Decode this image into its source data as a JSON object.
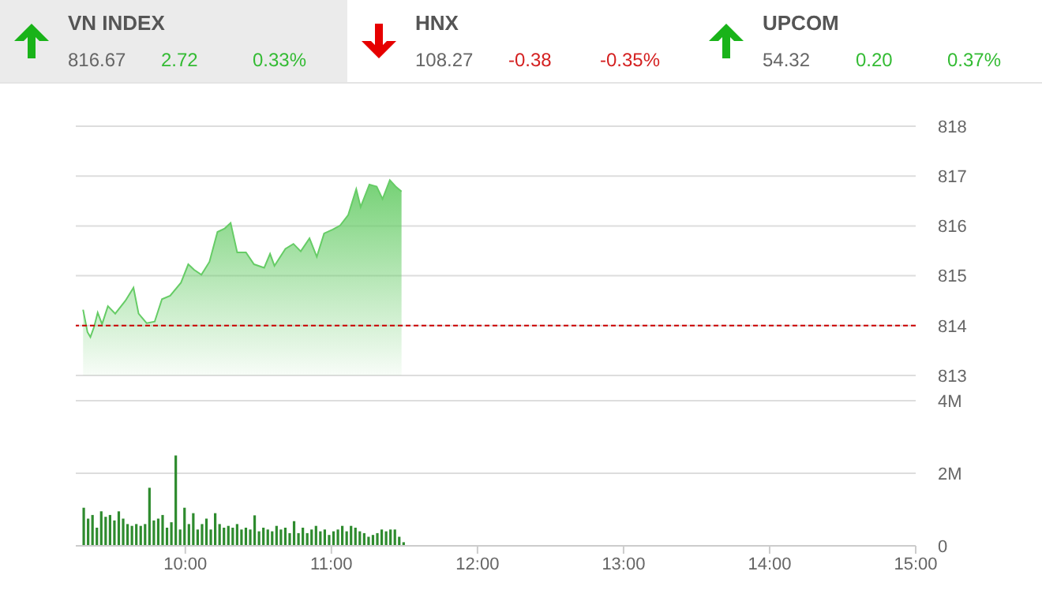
{
  "chart_data": [
    {
      "type": "other",
      "annotations": [
        "VN INDEX",
        "816.67",
        "2.72",
        "0.33%",
        "HNX",
        "108.27",
        "-0.38",
        "-0.35%",
        "UPCOM",
        "54.32",
        "0.20",
        "0.37%"
      ]
    },
    {
      "type": "area",
      "x": [
        9.3,
        9.33,
        9.35,
        9.376,
        9.4,
        9.43,
        9.47,
        9.52,
        9.59,
        9.645,
        9.68,
        9.735,
        9.79,
        9.84,
        9.896,
        9.97,
        10.02,
        10.06,
        10.11,
        10.165,
        10.22,
        10.27,
        10.31,
        10.355,
        10.415,
        10.47,
        10.54,
        10.58,
        10.61,
        10.685,
        10.74,
        10.79,
        10.85,
        10.9,
        10.95,
        11.01,
        11.06,
        11.115,
        11.17,
        11.2,
        11.26,
        11.31,
        11.35,
        11.4,
        11.44,
        11.48
      ],
      "series": [
        {
          "color": "#66cc66",
          "values": [
            814.32,
            813.87,
            813.77,
            813.98,
            814.26,
            814.03,
            814.39,
            814.24,
            814.5,
            814.76,
            814.24,
            814.05,
            814.08,
            814.53,
            814.6,
            814.86,
            815.23,
            815.12,
            815.02,
            815.28,
            815.88,
            815.95,
            816.06,
            815.47,
            815.47,
            815.23,
            815.16,
            815.44,
            815.2,
            815.54,
            815.64,
            815.49,
            815.75,
            815.38,
            815.85,
            815.93,
            816.01,
            816.22,
            816.74,
            816.38,
            816.83,
            816.79,
            816.54,
            816.92,
            816.79,
            816.69
          ]
        }
      ],
      "xlim": [
        9.25,
        15
      ],
      "ylim": [
        813,
        818
      ],
      "yticks": [
        813,
        814,
        815,
        816,
        817,
        818
      ],
      "grid": "y",
      "tick_labels": "y",
      "ref_lines": [
        {
          "axis": "y",
          "value": 814,
          "color": "#cc0000",
          "line_style": "dashed"
        }
      ]
    },
    {
      "type": "bar",
      "color": "#2e8b2e",
      "x": [
        9.3,
        9.33,
        9.36,
        9.39,
        9.42,
        9.45,
        9.48,
        9.51,
        9.54,
        9.57,
        9.6,
        9.63,
        9.66,
        9.69,
        9.72,
        9.75,
        9.78,
        9.81,
        9.84,
        9.87,
        9.9,
        9.93,
        9.96,
        9.99,
        10.02,
        10.05,
        10.08,
        10.11,
        10.14,
        10.17,
        10.2,
        10.23,
        10.26,
        10.29,
        10.32,
        10.35,
        10.38,
        10.41,
        10.44,
        10.47,
        10.5,
        10.53,
        10.56,
        10.59,
        10.62,
        10.65,
        10.68,
        10.71,
        10.74,
        10.77,
        10.8,
        10.83,
        10.86,
        10.89,
        10.92,
        10.95,
        10.98,
        11.01,
        11.04,
        11.07,
        11.1,
        11.13,
        11.16,
        11.19,
        11.22,
        11.25,
        11.28,
        11.31,
        11.34,
        11.37,
        11.4,
        11.43,
        11.46,
        11.49
      ],
      "values": [
        1.05,
        0.75,
        0.85,
        0.5,
        0.95,
        0.8,
        0.85,
        0.7,
        0.95,
        0.75,
        0.6,
        0.55,
        0.6,
        0.55,
        0.6,
        1.6,
        0.7,
        0.75,
        0.85,
        0.5,
        0.65,
        2.49,
        0.45,
        1.05,
        0.6,
        0.9,
        0.45,
        0.6,
        0.75,
        0.45,
        0.9,
        0.6,
        0.5,
        0.55,
        0.5,
        0.6,
        0.45,
        0.5,
        0.45,
        0.84,
        0.4,
        0.5,
        0.45,
        0.4,
        0.55,
        0.45,
        0.5,
        0.35,
        0.68,
        0.35,
        0.5,
        0.35,
        0.45,
        0.55,
        0.4,
        0.45,
        0.3,
        0.4,
        0.45,
        0.55,
        0.4,
        0.55,
        0.5,
        0.4,
        0.35,
        0.25,
        0.3,
        0.35,
        0.45,
        0.4,
        0.45,
        0.45,
        0.25,
        0.1
      ],
      "xlim": [
        9.25,
        15
      ],
      "xticks": [
        {
          "value": 10,
          "label": "10:00"
        },
        {
          "value": 11,
          "label": "11:00"
        },
        {
          "value": 12,
          "label": "12:00"
        },
        {
          "value": 13,
          "label": "13:00"
        },
        {
          "value": 14,
          "label": "14:00"
        },
        {
          "value": 15,
          "label": "15:00"
        }
      ],
      "ylim": [
        0,
        4
      ],
      "yticks": [
        0,
        {
          "value": 2,
          "label": "2M"
        },
        {
          "value": 4,
          "label": "4M"
        }
      ],
      "grid": "y"
    }
  ]
}
